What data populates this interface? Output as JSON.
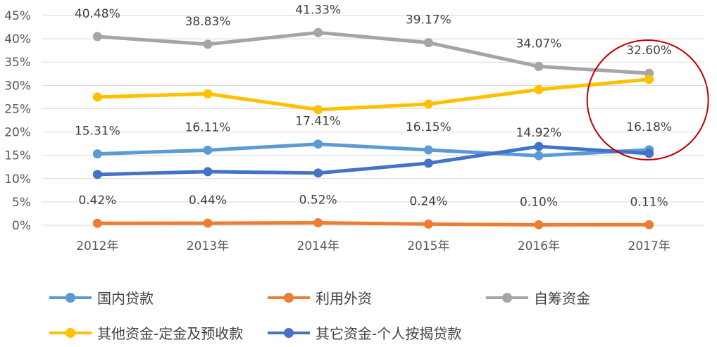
{
  "chart_data": {
    "type": "line",
    "categories": [
      "2012年",
      "2013年",
      "2014年",
      "2015年",
      "2016年",
      "2017年"
    ],
    "y_ticks": [
      "0%",
      "5%",
      "10%",
      "15%",
      "20%",
      "25%",
      "30%",
      "35%",
      "40%",
      "45%"
    ],
    "ylim": [
      0,
      45
    ],
    "grid": true,
    "legend_position": "bottom",
    "series": [
      {
        "name": "国内贷款",
        "color": "#5B9BD5",
        "values": [
          15.31,
          16.11,
          17.41,
          16.15,
          14.92,
          16.18
        ],
        "labels": [
          "15.31%",
          "16.11%",
          "17.41%",
          "16.15%",
          "14.92%",
          "16.18%"
        ]
      },
      {
        "name": "利用外资",
        "color": "#ED7D31",
        "values": [
          0.42,
          0.44,
          0.52,
          0.24,
          0.1,
          0.11
        ],
        "labels": [
          "0.42%",
          "0.44%",
          "0.52%",
          "0.24%",
          "0.10%",
          "0.11%"
        ]
      },
      {
        "name": "自筹资金",
        "color": "#A5A5A5",
        "values": [
          40.48,
          38.83,
          41.33,
          39.17,
          34.07,
          32.6
        ],
        "labels": [
          "40.48%",
          "38.83%",
          "41.33%",
          "39.17%",
          "34.07%",
          "32.60%"
        ]
      },
      {
        "name": "其他资金-定金及预收款",
        "color": "#FFC000",
        "values": [
          27.5,
          28.2,
          24.8,
          26.0,
          29.1,
          31.3
        ],
        "labels": []
      },
      {
        "name": "其它资金-个人按揭贷款",
        "color": "#4472C4",
        "values": [
          10.9,
          11.5,
          11.2,
          13.3,
          16.9,
          15.4
        ],
        "labels": []
      }
    ],
    "annotation": {
      "type": "circle",
      "color": "#C00000",
      "category": "2017年"
    }
  }
}
